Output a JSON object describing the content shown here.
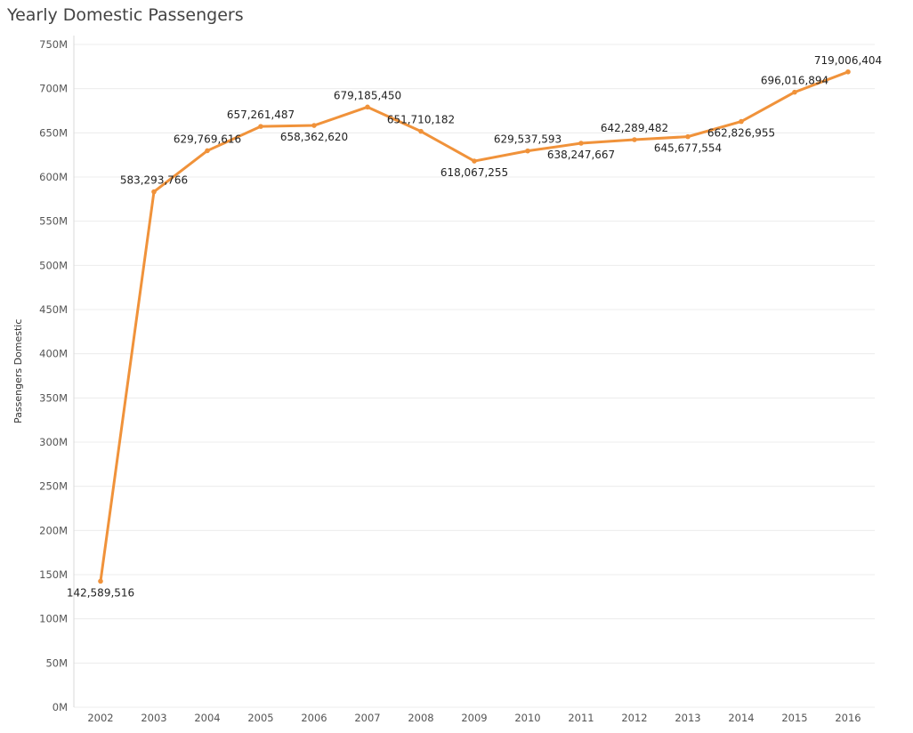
{
  "chart_data": {
    "type": "line",
    "title": "Yearly Domestic Passengers",
    "ylabel": "Passengers Domestic",
    "xlabel": "",
    "x": [
      "2002",
      "2003",
      "2004",
      "2005",
      "2006",
      "2007",
      "2008",
      "2009",
      "2010",
      "2011",
      "2012",
      "2013",
      "2014",
      "2015",
      "2016"
    ],
    "values": [
      142589516,
      583293766,
      629769616,
      657261487,
      658362620,
      679185450,
      651710182,
      618067255,
      629537593,
      638247667,
      642289482,
      645677554,
      662826955,
      696016894,
      719006404
    ],
    "data_labels": [
      "142,589,516",
      "583,293,766",
      "629,769,616",
      "657,261,487",
      "658,362,620",
      "679,185,450",
      "651,710,182",
      "618,067,255",
      "629,537,593",
      "638,247,667",
      "642,289,482",
      "645,677,554",
      "662,826,955",
      "696,016,894",
      "719,006,404"
    ],
    "label_positions": [
      "below",
      "above",
      "above",
      "above",
      "below",
      "above",
      "above",
      "below",
      "above",
      "below",
      "above",
      "below",
      "below",
      "above",
      "above"
    ],
    "y_ticks": [
      0,
      50000000,
      100000000,
      150000000,
      200000000,
      250000000,
      300000000,
      350000000,
      400000000,
      450000000,
      500000000,
      550000000,
      600000000,
      650000000,
      700000000,
      750000000
    ],
    "y_tick_labels": [
      "0M",
      "50M",
      "100M",
      "150M",
      "200M",
      "250M",
      "300M",
      "350M",
      "400M",
      "450M",
      "500M",
      "550M",
      "600M",
      "650M",
      "700M",
      "750M"
    ],
    "ylim": [
      0,
      750000000
    ],
    "grid": true,
    "color": "#f0923a"
  }
}
